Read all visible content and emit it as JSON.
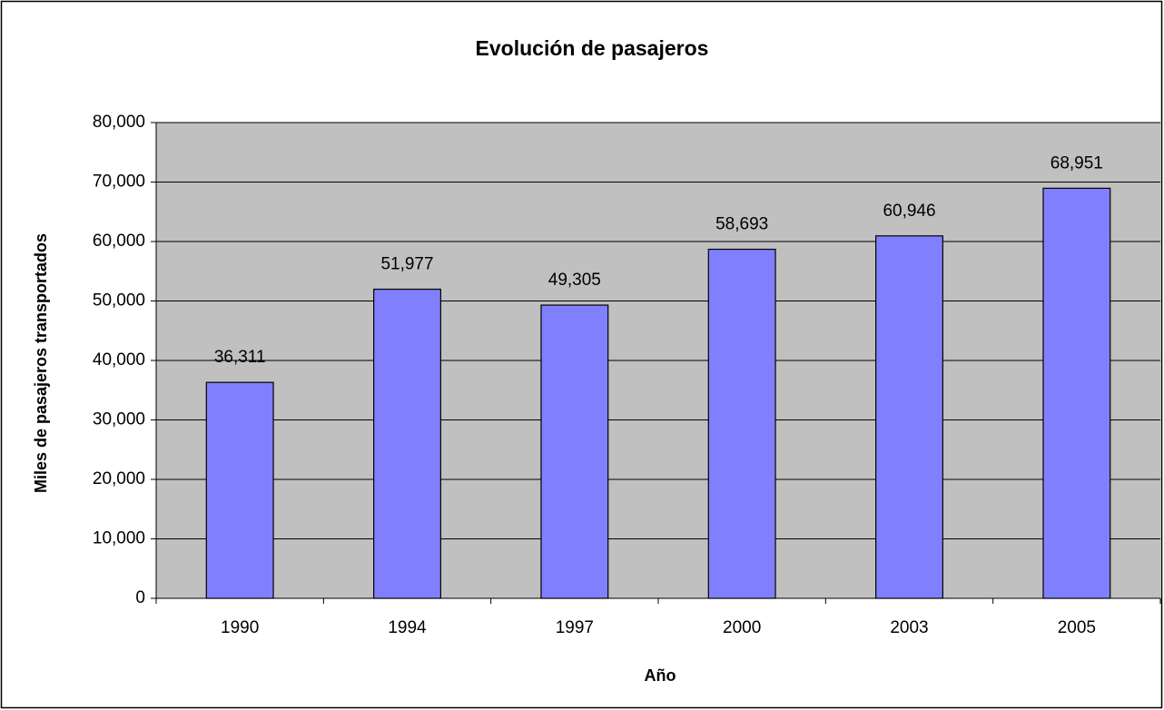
{
  "chart_data": {
    "type": "bar",
    "title": "Evolución de pasajeros",
    "x_label": "Año",
    "y_label": "Miles de pasajeros transportados",
    "categories": [
      "1990",
      "1994",
      "1997",
      "2000",
      "2003",
      "2005"
    ],
    "values": [
      36311,
      51977,
      49305,
      58693,
      60946,
      68951
    ],
    "value_labels": [
      "36,311",
      "51,977",
      "49,305",
      "58,693",
      "60,946",
      "68,951"
    ],
    "color": "#8080ff",
    "ylim": [
      0,
      80000
    ],
    "yticks": [
      0,
      {
        "value": 10000,
        "label": "10,000"
      },
      {
        "value": 20000,
        "label": "20,000"
      },
      {
        "value": 30000,
        "label": "30,000"
      },
      {
        "value": 40000,
        "label": "40,000"
      },
      {
        "value": 50000,
        "label": "50,000"
      },
      {
        "value": 60000,
        "label": "60,000"
      },
      {
        "value": 70000,
        "label": "70,000"
      },
      {
        "value": 80000,
        "label": "80,000"
      }
    ],
    "grid": true
  }
}
